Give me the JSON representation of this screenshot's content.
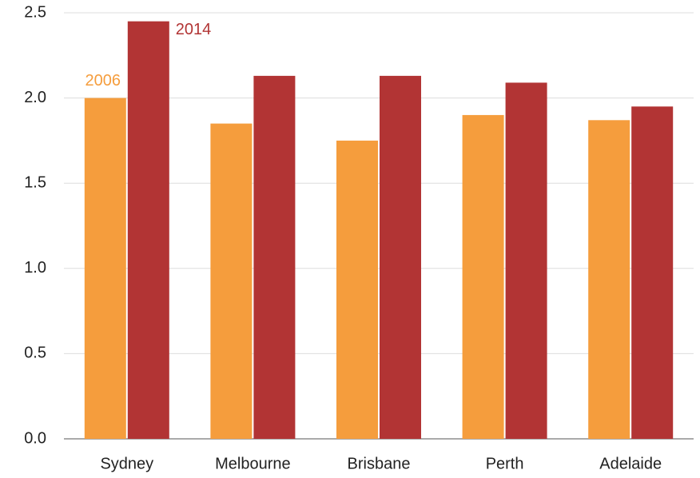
{
  "chart_data": {
    "type": "bar",
    "categories": [
      "Sydney",
      "Melbourne",
      "Brisbane",
      "Perth",
      "Adelaide"
    ],
    "series": [
      {
        "name": "2006",
        "color": "#f59d3d",
        "values": [
          2.0,
          1.85,
          1.75,
          1.9,
          1.87
        ]
      },
      {
        "name": "2014",
        "color": "#b23434",
        "values": [
          2.45,
          2.13,
          2.13,
          2.09,
          1.95
        ]
      }
    ],
    "ylim": [
      0,
      2.5
    ],
    "yticks": [
      {
        "value": 0,
        "label": "0.0"
      },
      0.5,
      {
        "value": 1,
        "label": "1.0"
      },
      1.5,
      {
        "value": 2,
        "label": "2.0"
      },
      2.5
    ],
    "grid": true
  }
}
